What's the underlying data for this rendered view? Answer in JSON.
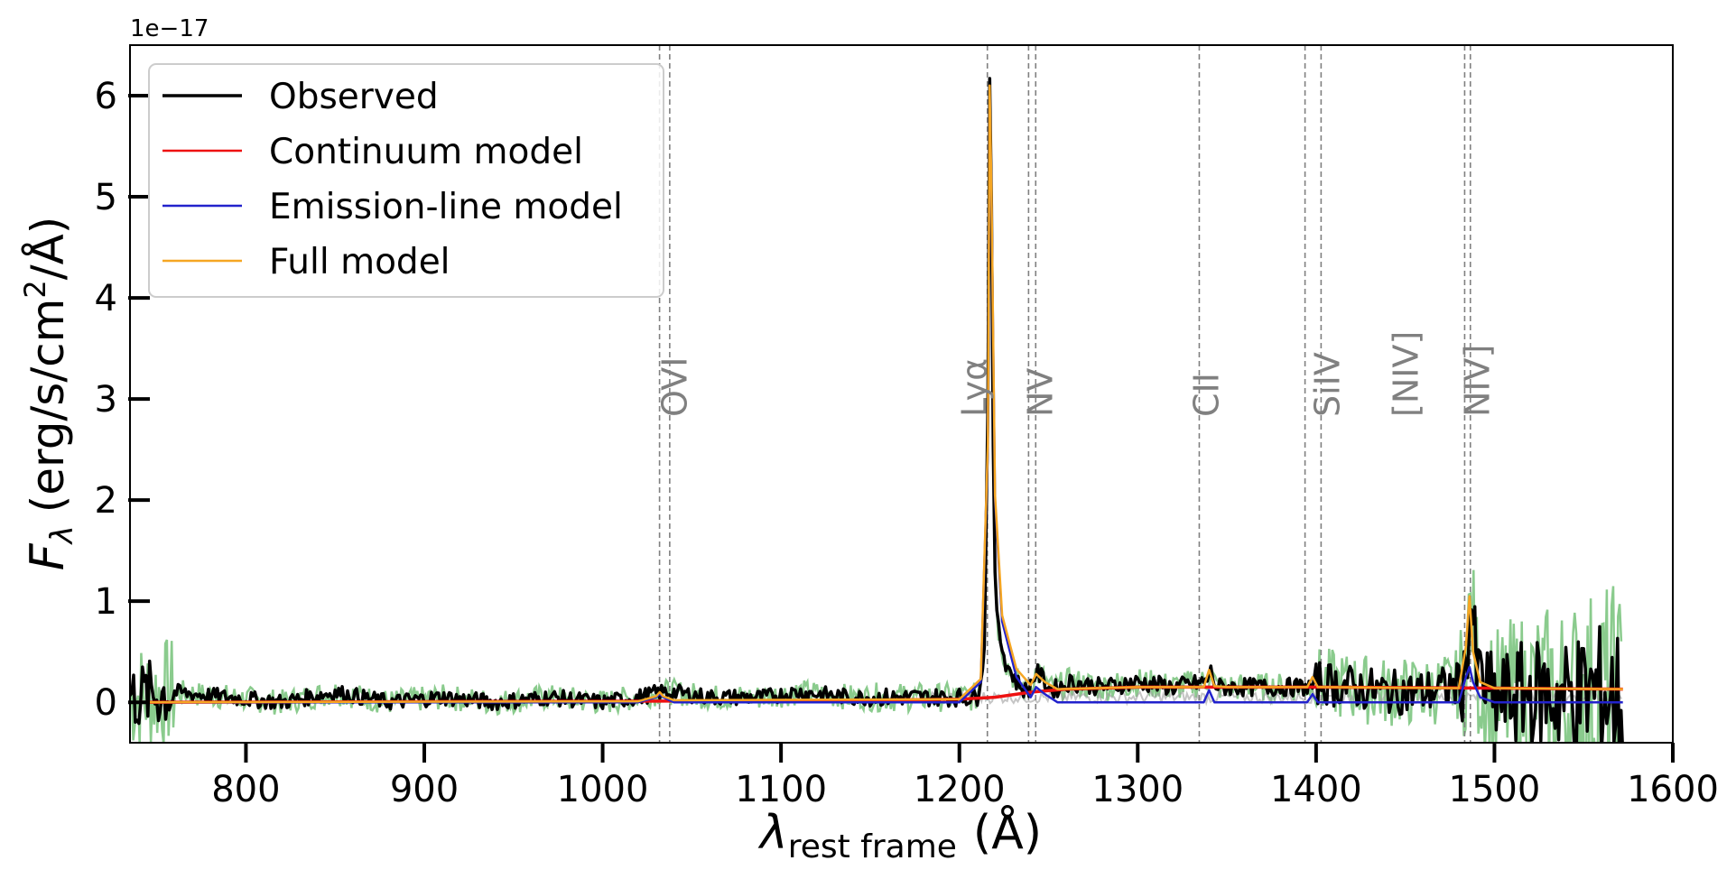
{
  "chart_data": {
    "type": "line",
    "xlabel": "λ",
    "xlabel_sub": "rest frame",
    "xlabel_unit": "(Å)",
    "ylabel_main": "F",
    "ylabel_sub": "λ",
    "ylabel_unit": "(erg/s/cm",
    "ylabel_sup": "2",
    "ylabel_tail": "/Å)",
    "y_offset_text": "1e−17",
    "xlim": [
      735,
      1600
    ],
    "ylim": [
      -0.4,
      6.5
    ],
    "x_ticks": [
      {
        "value": 800,
        "label": "800"
      },
      {
        "value": 900,
        "label": "900"
      },
      {
        "value": 1000,
        "label": "1000"
      },
      {
        "value": 1100,
        "label": "1100"
      },
      {
        "value": 1200,
        "label": "1200"
      },
      {
        "value": 1300,
        "label": "1300"
      },
      {
        "value": 1400,
        "label": "1400"
      },
      {
        "value": 1500,
        "label": "1500"
      },
      {
        "value": 1600,
        "label": "1600"
      }
    ],
    "y_ticks": [
      {
        "value": 0,
        "label": "0"
      },
      {
        "value": 1,
        "label": "1"
      },
      {
        "value": 2,
        "label": "2"
      },
      {
        "value": 3,
        "label": "3"
      },
      {
        "value": 4,
        "label": "4"
      },
      {
        "value": 5,
        "label": "5"
      },
      {
        "value": 6,
        "label": "6"
      }
    ],
    "legend_position": "top-left",
    "grid": false,
    "colors": {
      "observed": "#000000",
      "continuum": "#ee1111",
      "emission": "#2222cc",
      "full": "#f5a623",
      "error": "#4caf50",
      "error_dark": "#2e6b2e",
      "markers": "#808080"
    },
    "series": [
      {
        "name": "Observed",
        "key": "observed",
        "width": 3.5,
        "x": [
          735,
          760,
          790,
          820,
          850,
          880,
          910,
          940,
          970,
          1000,
          1020,
          1032,
          1040,
          1060,
          1090,
          1110,
          1140,
          1170,
          1195,
          1210,
          1214,
          1216,
          1217,
          1218,
          1219,
          1220,
          1222,
          1226,
          1232,
          1238,
          1243,
          1246,
          1252,
          1262,
          1280,
          1300,
          1320,
          1338,
          1341,
          1344,
          1360,
          1380,
          1398,
          1402,
          1420,
          1440,
          1460,
          1475,
          1483,
          1485,
          1487,
          1490,
          1500,
          1520,
          1540,
          1560,
          1572
        ],
        "y": [
          0.05,
          0.1,
          0.05,
          0.0,
          0.1,
          0.0,
          0.05,
          0.0,
          0.05,
          0.0,
          0.05,
          0.1,
          0.1,
          0.05,
          0.05,
          0.1,
          0.05,
          0.05,
          0.05,
          0.05,
          0.5,
          3.0,
          6.15,
          5.0,
          2.5,
          1.2,
          0.7,
          0.4,
          0.2,
          0.1,
          0.3,
          0.25,
          0.12,
          0.2,
          0.15,
          0.2,
          0.15,
          0.2,
          0.3,
          0.15,
          0.15,
          0.15,
          0.15,
          0.2,
          0.15,
          0.1,
          0.1,
          0.15,
          0.2,
          0.6,
          1.0,
          0.3,
          0.0,
          0.1,
          0.05,
          0.1,
          0.0
        ]
      },
      {
        "name": "Continuum model",
        "key": "continuum",
        "width": 3.5,
        "x": [
          735,
          1000,
          1150,
          1200,
          1220,
          1240,
          1260,
          1300,
          1400,
          1500,
          1572
        ],
        "y": [
          0.0,
          0.01,
          0.02,
          0.03,
          0.05,
          0.1,
          0.13,
          0.15,
          0.15,
          0.14,
          0.13
        ]
      },
      {
        "name": "Emission-line model",
        "key": "emission",
        "width": 2.5,
        "x": [
          735,
          1020,
          1030,
          1032,
          1034,
          1040,
          1200,
          1212,
          1216,
          1217,
          1218,
          1220,
          1224,
          1232,
          1240,
          1243,
          1248,
          1255,
          1300,
          1337,
          1340,
          1343,
          1350,
          1395,
          1398,
          1401,
          1404,
          1480,
          1484,
          1486,
          1488,
          1492,
          1500,
          1572
        ],
        "y": [
          0.0,
          0.0,
          0.05,
          0.08,
          0.05,
          0.0,
          0.0,
          0.2,
          2.5,
          6.0,
          5.0,
          2.0,
          0.8,
          0.25,
          0.05,
          0.15,
          0.08,
          0.0,
          0.0,
          0.0,
          0.12,
          0.0,
          0.0,
          0.0,
          0.08,
          0.0,
          0.0,
          0.0,
          0.25,
          0.35,
          0.2,
          0.05,
          0.0,
          0.0
        ]
      },
      {
        "name": "Full model",
        "key": "full",
        "width": 2.5,
        "x": [
          735,
          1020,
          1030,
          1032,
          1034,
          1040,
          1200,
          1212,
          1216,
          1217,
          1218,
          1220,
          1224,
          1232,
          1240,
          1243,
          1248,
          1255,
          1300,
          1337,
          1340,
          1343,
          1350,
          1395,
          1398,
          1401,
          1404,
          1480,
          1484,
          1486,
          1488,
          1492,
          1500,
          1572
        ],
        "y": [
          0.0,
          0.01,
          0.06,
          0.1,
          0.06,
          0.02,
          0.03,
          0.23,
          2.55,
          6.1,
          5.05,
          2.05,
          0.86,
          0.33,
          0.17,
          0.28,
          0.2,
          0.13,
          0.15,
          0.15,
          0.32,
          0.16,
          0.15,
          0.15,
          0.25,
          0.15,
          0.15,
          0.14,
          0.55,
          1.05,
          0.5,
          0.2,
          0.14,
          0.13
        ]
      }
    ],
    "emission_lines": [
      {
        "label": "OVI",
        "x": [
          1031.9,
          1037.6
        ],
        "label_x": 1040
      },
      {
        "label": "Lyα",
        "x": [
          1215.7
        ],
        "label_x": 1208
      },
      {
        "label": "NV",
        "x": [
          1238.8,
          1242.8
        ],
        "label_x": 1245
      },
      {
        "label": "CII",
        "x": [
          1334.5
        ],
        "label_x": 1338
      },
      {
        "label": "SiIV",
        "x": [
          1393.8,
          1402.8
        ],
        "label_x": 1406
      },
      {
        "label": "[NIV]",
        "x": [
          1483.3
        ],
        "label_x": 1450
      },
      {
        "label": "NIV]",
        "x": [
          1486.5
        ],
        "label_x": 1490
      }
    ]
  }
}
